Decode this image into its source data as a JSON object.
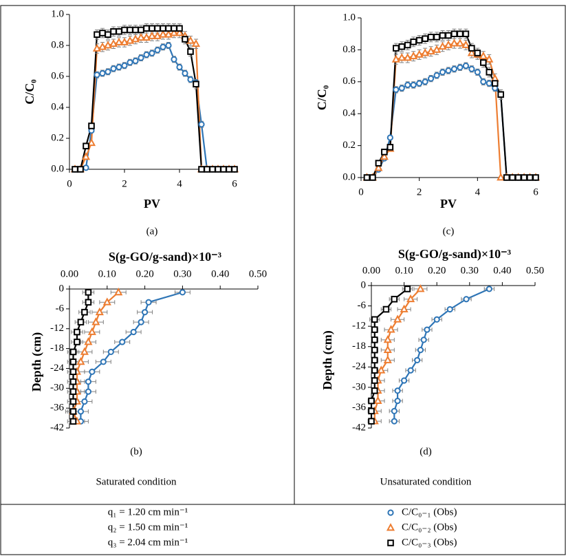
{
  "chart_data": [
    {
      "type": "line",
      "panel_label": "(a)",
      "x_label": "PV",
      "y_label": "C/C₀",
      "xlim": [
        0,
        6
      ],
      "xticks": [
        0,
        2,
        4,
        6
      ],
      "ylim": [
        0,
        1
      ],
      "yticks": [
        {
          "value": 0,
          "label": "0.0"
        },
        0.2,
        0.4,
        0.6,
        0.8,
        {
          "value": 1,
          "label": "1.0"
        }
      ],
      "x": [
        0.2,
        0.4,
        0.6,
        0.8,
        1.0,
        1.2,
        1.4,
        1.6,
        1.8,
        2.0,
        2.2,
        2.4,
        2.6,
        2.8,
        3.0,
        3.2,
        3.4,
        3.6,
        3.8,
        4.0,
        4.2,
        4.4,
        4.6,
        4.8,
        5.0,
        5.2,
        5.4,
        5.6,
        5.8,
        6.0
      ],
      "series": [
        {
          "name": "C/C₀₋₁ (Obs)",
          "color": "#2e75b6",
          "marker": "circle",
          "values": [
            0,
            0,
            0.01,
            0.25,
            0.61,
            0.62,
            0.63,
            0.65,
            0.66,
            0.67,
            0.69,
            0.7,
            0.72,
            0.74,
            0.75,
            0.77,
            0.79,
            0.8,
            0.71,
            0.66,
            0.62,
            0.58,
            0.56,
            0.29,
            0,
            0,
            0,
            0,
            0,
            0
          ],
          "errors": [
            0,
            0,
            0,
            0,
            0.02,
            0.02,
            0.02,
            0.02,
            0.02,
            0.02,
            0.02,
            0.02,
            0.02,
            0.02,
            0.02,
            0.02,
            0.02,
            0.02,
            0.02,
            0.02,
            0.02,
            0.02,
            0.02,
            0.02,
            0,
            0,
            0,
            0,
            0,
            0
          ]
        },
        {
          "name": "C/C₀₋₂ (Obs)",
          "color": "#ed7d31",
          "marker": "triangle",
          "values": [
            0,
            0,
            0.08,
            0.17,
            0.78,
            0.79,
            0.8,
            0.81,
            0.82,
            0.82,
            0.83,
            0.84,
            0.85,
            0.85,
            0.86,
            0.86,
            0.87,
            0.87,
            0.88,
            0.88,
            0.86,
            0.83,
            0.81,
            0,
            0,
            0,
            0,
            0,
            0,
            0
          ],
          "errors": [
            0,
            0,
            0,
            0,
            0.03,
            0.03,
            0.03,
            0.03,
            0.03,
            0.03,
            0.03,
            0.03,
            0.03,
            0.03,
            0.03,
            0.03,
            0.03,
            0.03,
            0.03,
            0.03,
            0.03,
            0.03,
            0.03,
            0,
            0,
            0,
            0,
            0,
            0,
            0
          ]
        },
        {
          "name": "C/C₀₋₃ (Obs)",
          "color": "#000000",
          "marker": "square",
          "values": [
            0,
            0,
            0.15,
            0.28,
            0.87,
            0.88,
            0.87,
            0.89,
            0.89,
            0.9,
            0.9,
            0.9,
            0.9,
            0.91,
            0.91,
            0.91,
            0.91,
            0.91,
            0.91,
            0.91,
            0.84,
            0.76,
            0.55,
            0,
            0,
            0,
            0,
            0,
            0,
            0
          ],
          "errors": [
            0,
            0,
            0,
            0,
            0.03,
            0.03,
            0.03,
            0.03,
            0.03,
            0.03,
            0.03,
            0.03,
            0.03,
            0.03,
            0.03,
            0.03,
            0.03,
            0.03,
            0.03,
            0.03,
            0.03,
            0.03,
            0.03,
            0,
            0,
            0,
            0,
            0,
            0,
            0
          ]
        }
      ]
    },
    {
      "type": "profile",
      "panel_label": "(b)",
      "condition": "Saturated condition",
      "x_label": "S(g-GO/g-sand)×10⁻³",
      "y_label": "Depth (cm)",
      "xlim": [
        0,
        0.5
      ],
      "xticks": [
        {
          "value": 0,
          "label": "0.00"
        },
        {
          "value": 0.1,
          "label": "0.10"
        },
        {
          "value": 0.2,
          "label": "0.20"
        },
        {
          "value": 0.3,
          "label": "0.30"
        },
        {
          "value": 0.4,
          "label": "0.40"
        },
        {
          "value": 0.5,
          "label": "0.50"
        }
      ],
      "ylim": [
        -42,
        0
      ],
      "yticks": [
        0,
        -6,
        -12,
        -18,
        -24,
        -30,
        -36,
        -42
      ],
      "y": [
        -1,
        -4,
        -7,
        -10,
        -13,
        -16,
        -19,
        -22,
        -25,
        -28,
        -31,
        -34,
        -37,
        -40
      ],
      "series": [
        {
          "color": "#2e75b6",
          "marker": "circle",
          "values": [
            0.3,
            0.21,
            0.2,
            0.19,
            0.17,
            0.14,
            0.11,
            0.09,
            0.06,
            0.05,
            0.05,
            0.04,
            0.03,
            0.03
          ],
          "errors": [
            0.02,
            0.02,
            0.02,
            0.02,
            0.02,
            0.02,
            0.02,
            0.02,
            0.02,
            0.02,
            0.02,
            0.02,
            0.02,
            0.02
          ]
        },
        {
          "color": "#ed7d31",
          "marker": "triangle",
          "values": [
            0.13,
            0.1,
            0.08,
            0.07,
            0.06,
            0.05,
            0.04,
            0.03,
            0.02,
            0.02,
            0.02,
            0.02,
            0.01,
            0.02
          ],
          "errors": [
            0.02,
            0.02,
            0.02,
            0.02,
            0.02,
            0.02,
            0.02,
            0.02,
            0.02,
            0.02,
            0.02,
            0.02,
            0.02,
            0.02
          ]
        },
        {
          "color": "#000000",
          "marker": "square",
          "values": [
            0.05,
            0.05,
            0.04,
            0.03,
            0.02,
            0.02,
            0.01,
            0.01,
            0.01,
            0.01,
            0.01,
            0.01,
            0.01,
            0.01
          ],
          "errors": [
            0.015,
            0.015,
            0.015,
            0.015,
            0.015,
            0.015,
            0.015,
            0.015,
            0.015,
            0.015,
            0.015,
            0.015,
            0.015,
            0.015
          ]
        }
      ]
    },
    {
      "type": "line",
      "panel_label": "(c)",
      "x_label": "PV",
      "y_label": "C/C₀",
      "xlim": [
        0,
        6
      ],
      "xticks": [
        0,
        2,
        4,
        6
      ],
      "ylim": [
        0,
        1
      ],
      "yticks": [
        {
          "value": 0,
          "label": "0.0"
        },
        0.2,
        0.4,
        0.6,
        0.8,
        {
          "value": 1,
          "label": "1.0"
        }
      ],
      "x": [
        0.2,
        0.4,
        0.6,
        0.8,
        1.0,
        1.2,
        1.4,
        1.6,
        1.8,
        2.0,
        2.2,
        2.4,
        2.6,
        2.8,
        3.0,
        3.2,
        3.4,
        3.6,
        3.8,
        4.0,
        4.2,
        4.4,
        4.6,
        4.8,
        5.0,
        5.2,
        5.4,
        5.6,
        5.8,
        6.0
      ],
      "series": [
        {
          "color": "#2e75b6",
          "marker": "circle",
          "values": [
            0,
            0,
            0.05,
            0.12,
            0.25,
            0.55,
            0.56,
            0.58,
            0.58,
            0.59,
            0.6,
            0.62,
            0.64,
            0.66,
            0.67,
            0.68,
            0.69,
            0.7,
            0.68,
            0.66,
            0.6,
            0.59,
            0.56,
            0.52,
            0,
            0,
            0,
            0,
            0,
            0
          ],
          "errors": [
            0,
            0,
            0,
            0,
            0,
            0.02,
            0.02,
            0.02,
            0.02,
            0.02,
            0.02,
            0.02,
            0.02,
            0.02,
            0.02,
            0.02,
            0.02,
            0.02,
            0.02,
            0.02,
            0.02,
            0.02,
            0.02,
            0.02,
            0,
            0,
            0,
            0,
            0,
            0
          ]
        },
        {
          "color": "#ed7d31",
          "marker": "triangle",
          "values": [
            0,
            0,
            0.06,
            0.13,
            0.18,
            0.74,
            0.75,
            0.75,
            0.76,
            0.77,
            0.78,
            0.79,
            0.8,
            0.82,
            0.83,
            0.84,
            0.84,
            0.83,
            0.78,
            0.77,
            0.76,
            0.74,
            0.62,
            0,
            0,
            0,
            0,
            0,
            0,
            0
          ],
          "errors": [
            0,
            0,
            0,
            0,
            0,
            0.03,
            0.03,
            0.03,
            0.03,
            0.03,
            0.03,
            0.03,
            0.03,
            0.03,
            0.03,
            0.03,
            0.03,
            0.03,
            0.03,
            0.03,
            0.03,
            0.03,
            0.03,
            0,
            0,
            0,
            0,
            0,
            0,
            0
          ]
        },
        {
          "color": "#000000",
          "marker": "square",
          "values": [
            0,
            0,
            0.09,
            0.16,
            0.19,
            0.81,
            0.82,
            0.83,
            0.85,
            0.86,
            0.87,
            0.88,
            0.88,
            0.89,
            0.89,
            0.9,
            0.9,
            0.9,
            0.81,
            0.78,
            0.72,
            0.66,
            0.59,
            0.52,
            0,
            0,
            0,
            0,
            0,
            0
          ],
          "errors": [
            0,
            0,
            0,
            0,
            0,
            0.03,
            0.03,
            0.03,
            0.03,
            0.03,
            0.03,
            0.03,
            0.03,
            0.03,
            0.03,
            0.03,
            0.03,
            0.03,
            0.03,
            0.03,
            0.03,
            0.03,
            0.03,
            0.03,
            0,
            0,
            0,
            0,
            0,
            0
          ]
        }
      ]
    },
    {
      "type": "profile",
      "panel_label": "(d)",
      "condition": "Unsaturated condition",
      "x_label": "S(g-GO/g-sand)×10⁻³",
      "y_label": "Depth (cm)",
      "xlim": [
        0,
        0.5
      ],
      "xticks": [
        {
          "value": 0,
          "label": "0.00"
        },
        {
          "value": 0.1,
          "label": "0.10"
        },
        {
          "value": 0.2,
          "label": "0.20"
        },
        {
          "value": 0.3,
          "label": "0.30"
        },
        {
          "value": 0.4,
          "label": "0.40"
        },
        {
          "value": 0.5,
          "label": "0.50"
        }
      ],
      "ylim": [
        -42,
        0
      ],
      "yticks": [
        0,
        -6,
        -12,
        -18,
        -24,
        -30,
        -36,
        -42
      ],
      "y": [
        -1,
        -4,
        -7,
        -10,
        -13,
        -16,
        -19,
        -22,
        -25,
        -28,
        -31,
        -34,
        -37,
        -40
      ],
      "series": [
        {
          "color": "#2e75b6",
          "marker": "circle",
          "values": [
            0.36,
            0.29,
            0.24,
            0.2,
            0.17,
            0.16,
            0.15,
            0.14,
            0.12,
            0.1,
            0.08,
            0.08,
            0.07,
            0.07
          ],
          "errors": [
            0.015,
            0.015,
            0.015,
            0.015,
            0.015,
            0.015,
            0.015,
            0.015,
            0.015,
            0.015,
            0.015,
            0.015,
            0.015,
            0.015
          ]
        },
        {
          "color": "#ed7d31",
          "marker": "triangle",
          "values": [
            0.15,
            0.12,
            0.1,
            0.08,
            0.06,
            0.05,
            0.05,
            0.05,
            0.03,
            0.02,
            0.02,
            0.02,
            0.01,
            0.01
          ],
          "errors": [
            0.02,
            0.02,
            0.02,
            0.02,
            0.02,
            0.02,
            0.02,
            0.02,
            0.02,
            0.02,
            0.02,
            0.02,
            0.02,
            0.02
          ]
        },
        {
          "color": "#000000",
          "marker": "square",
          "values": [
            0.11,
            0.07,
            0.045,
            0.01,
            0.01,
            0.01,
            0.01,
            0.01,
            0.01,
            0.01,
            0.01,
            0,
            0,
            0
          ],
          "errors": [
            0.015,
            0.015,
            0.015,
            0.015,
            0.01,
            0.01,
            0.01,
            0.01,
            0.01,
            0.01,
            0.01,
            0.01,
            0.01,
            0.01
          ]
        }
      ]
    }
  ],
  "flow_rates": [
    "q₁ = 1.20 cm min⁻¹",
    "q₂ = 1.50 cm min⁻¹",
    "q₃ = 2.04 cm min⁻¹"
  ]
}
